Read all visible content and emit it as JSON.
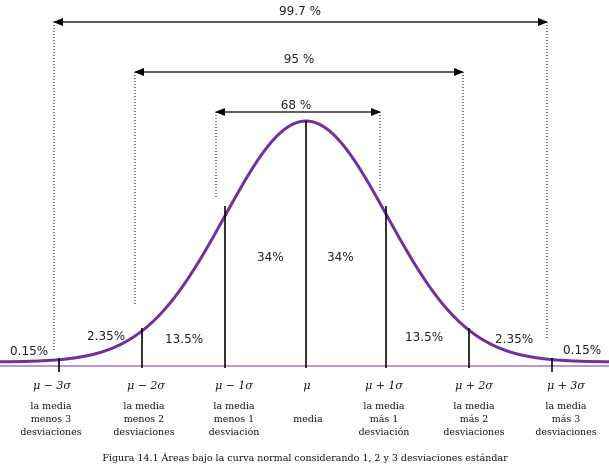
{
  "curve_color": "#7030a0",
  "bands": {
    "p997": "99.7 %",
    "p95": "95 %",
    "p68": "68 %"
  },
  "areas": {
    "far_left": "0.15%",
    "left_2_3": "2.35%",
    "left_1_2": "13.5%",
    "left_0_1": "34%",
    "right_0_1": "34%",
    "right_1_2": "13.5%",
    "right_2_3": "2.35%",
    "far_right": "0.15%"
  },
  "ticks": [
    {
      "symbol": "μ − 3σ",
      "desc": [
        "la media",
        "menos 3",
        "desviaciones"
      ]
    },
    {
      "symbol": "μ − 2σ",
      "desc": [
        "la media",
        "menos 2",
        "desviaciones"
      ]
    },
    {
      "symbol": "μ − 1σ",
      "desc": [
        "la media",
        "menos 1",
        "desviación"
      ]
    },
    {
      "symbol": "μ",
      "desc": [
        "media"
      ]
    },
    {
      "symbol": "μ + 1σ",
      "desc": [
        "la media",
        "más 1",
        "desviación"
      ]
    },
    {
      "symbol": "μ + 2σ",
      "desc": [
        "la media",
        "más 2",
        "desviaciones"
      ]
    },
    {
      "symbol": "μ + 3σ",
      "desc": [
        "la media",
        "más 3",
        "desviaciones"
      ]
    }
  ],
  "caption": "Figura 14.1 Áreas bajo la curva normal considerando 1, 2 y 3 desviaciones estándar"
}
